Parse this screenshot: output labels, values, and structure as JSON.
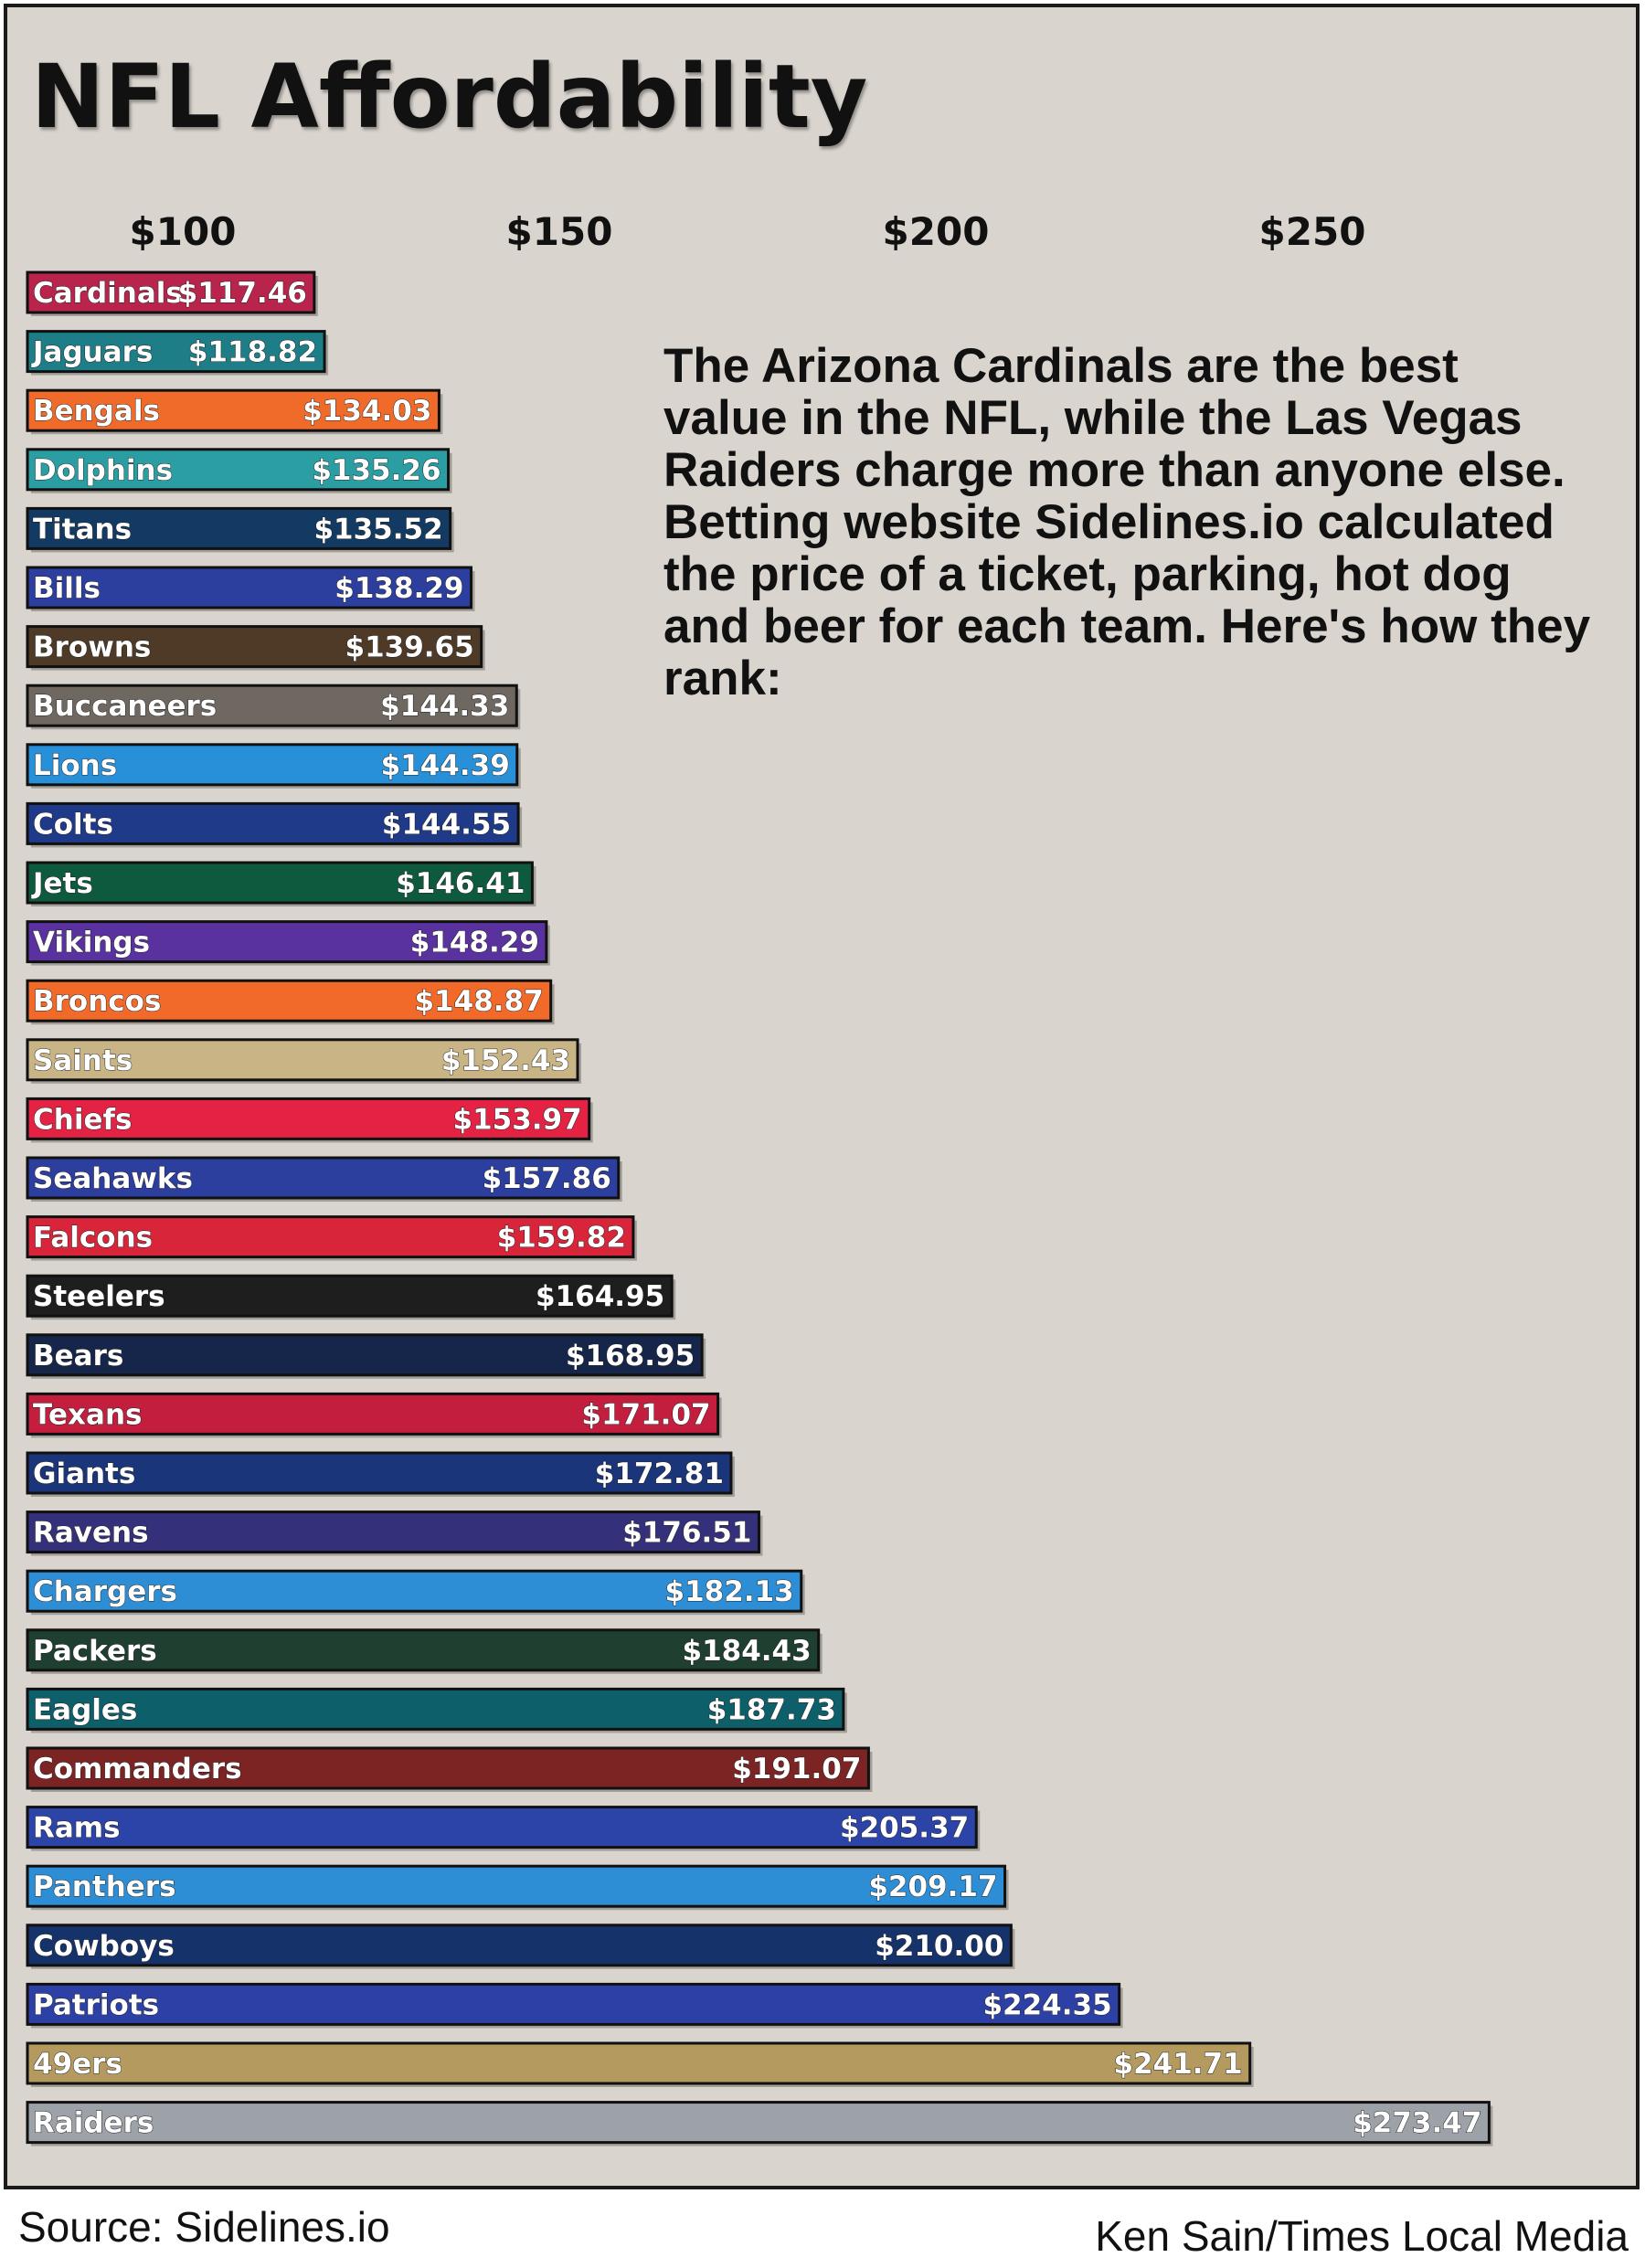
{
  "title": "NFL Affordability",
  "description": "The Arizona Cardinals are the best value in the NFL, while the Las Vegas Raiders charge more than anyone else. Betting website Sidelines.io calculated the price of a ticket, parking, hot dog and beer for each team. Here's how they rank:",
  "footer": {
    "source": "Source: Sidelines.io",
    "credit": "Ken Sain/Times Local Media"
  },
  "chart_data": {
    "type": "bar",
    "orientation": "horizontal",
    "x_axis_ticks": [
      {
        "value": 100,
        "label": "$100"
      },
      {
        "value": 150,
        "label": "$150"
      },
      {
        "value": 200,
        "label": "$200"
      },
      {
        "value": 250,
        "label": "$250"
      }
    ],
    "x_axis_position": "top",
    "grid": false,
    "categories": [
      "Cardinals",
      "Jaguars",
      "Bengals",
      "Dolphins",
      "Titans",
      "Bills",
      "Browns",
      "Buccaneers",
      "Lions",
      "Colts",
      "Jets",
      "Vikings",
      "Broncos",
      "Saints",
      "Chiefs",
      "Seahawks",
      "Falcons",
      "Steelers",
      "Bears",
      "Texans",
      "Giants",
      "Ravens",
      "Chargers",
      "Packers",
      "Eagles",
      "Commanders",
      "Rams",
      "Panthers",
      "Cowboys",
      "Patriots",
      "49ers",
      "Raiders"
    ],
    "values": [
      117.46,
      118.82,
      134.03,
      135.26,
      135.52,
      138.29,
      139.65,
      144.33,
      144.39,
      144.55,
      146.41,
      148.29,
      148.87,
      152.43,
      153.97,
      157.86,
      159.82,
      164.95,
      168.95,
      171.07,
      172.81,
      176.51,
      182.13,
      184.43,
      187.73,
      191.07,
      205.37,
      209.17,
      210.0,
      224.35,
      241.71,
      273.47
    ],
    "value_labels": [
      "$117.46",
      "$118.82",
      "$134.03",
      "$135.26",
      "$135.52",
      "$138.29",
      "$139.65",
      "$144.33",
      "$144.39",
      "$144.55",
      "$146.41",
      "$148.29",
      "$148.87",
      "$152.43",
      "$153.97",
      "$157.86",
      "$159.82",
      "$164.95",
      "$168.95",
      "$171.07",
      "$172.81",
      "$176.51",
      "$182.13",
      "$184.43",
      "$187.73",
      "$191.07",
      "$205.37",
      "$209.17",
      "$210.00",
      "$224.35",
      "$241.71",
      "$273.47"
    ],
    "bar_colors": [
      "#b8244c",
      "#1e7e88",
      "#f06a2a",
      "#2a9ea2",
      "#123a62",
      "#2c3e9e",
      "#4e3a26",
      "#6e6860",
      "#2890d8",
      "#1e3a88",
      "#0e5a3e",
      "#5a32a0",
      "#f26a2a",
      "#c9b486",
      "#e32244",
      "#2c3e9e",
      "#d8253a",
      "#1e1e1e",
      "#15264a",
      "#c31e3e",
      "#1a357a",
      "#34307a",
      "#2d8ed6",
      "#1f3f30",
      "#0d5f6a",
      "#7c2424",
      "#2c44a8",
      "#2d8ed6",
      "#15326a",
      "#2c40a6",
      "#b49a5e",
      "#9ca2a8"
    ],
    "label_colors": [
      "#ffffff",
      "#ffffff",
      "#ffffff",
      "#ffffff",
      "#ffffff",
      "#ffffff",
      "#ffffff",
      "#ffffff",
      "#ffffff",
      "#ffffff",
      "#ffffff",
      "#ffffff",
      "#ffffff",
      "#ffffff",
      "#ffffff",
      "#ffffff",
      "#ffffff",
      "#ffffff",
      "#ffffff",
      "#ffffff",
      "#ffffff",
      "#ffffff",
      "#ffffff",
      "#ffffff",
      "#ffffff",
      "#ffffff",
      "#ffffff",
      "#ffffff",
      "#ffffff",
      "#ffffff",
      "#ffffff",
      "#ffffff"
    ]
  }
}
